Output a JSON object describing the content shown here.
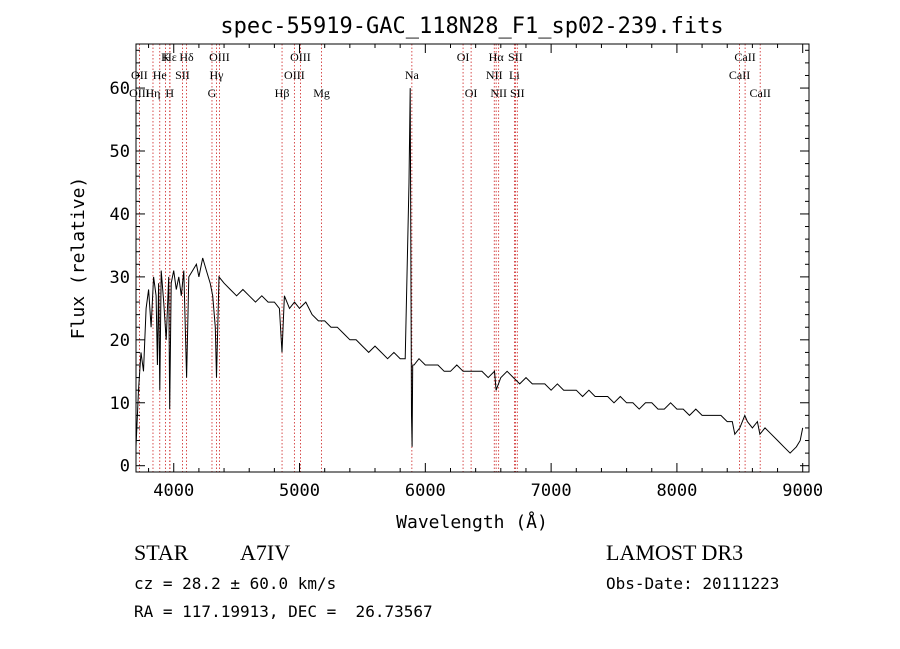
{
  "chart_data": {
    "type": "line",
    "title": "spec-55919-GAC_118N28_F1_sp02-239.fits",
    "xlabel": "Wavelength (Å)",
    "ylabel": "Flux (relative)",
    "xlim": [
      3700,
      9050
    ],
    "ylim": [
      -1,
      67
    ],
    "xticks": [
      4000,
      5000,
      6000,
      7000,
      8000,
      9000
    ],
    "yticks": [
      0,
      10,
      20,
      30,
      40,
      50,
      60
    ],
    "grid": false,
    "series": [
      {
        "name": "spectrum",
        "x": [
          3700,
          3720,
          3740,
          3760,
          3780,
          3800,
          3820,
          3840,
          3860,
          3870,
          3880,
          3889,
          3900,
          3920,
          3940,
          3960,
          3968,
          3980,
          4000,
          4020,
          4040,
          4060,
          4080,
          4102,
          4120,
          4150,
          4180,
          4200,
          4230,
          4260,
          4290,
          4310,
          4330,
          4340,
          4360,
          4400,
          4450,
          4500,
          4550,
          4600,
          4650,
          4700,
          4750,
          4800,
          4840,
          4861,
          4880,
          4920,
          4960,
          5000,
          5050,
          5100,
          5150,
          5200,
          5250,
          5300,
          5350,
          5400,
          5450,
          5500,
          5550,
          5600,
          5650,
          5700,
          5750,
          5800,
          5840,
          5870,
          5880,
          5890,
          5895,
          5900,
          5910,
          5950,
          6000,
          6050,
          6100,
          6150,
          6200,
          6250,
          6300,
          6350,
          6400,
          6450,
          6500,
          6550,
          6563,
          6600,
          6650,
          6700,
          6750,
          6800,
          6850,
          6900,
          6950,
          7000,
          7050,
          7100,
          7150,
          7200,
          7250,
          7300,
          7350,
          7400,
          7450,
          7500,
          7550,
          7600,
          7650,
          7700,
          7750,
          7800,
          7850,
          7900,
          7950,
          8000,
          8050,
          8100,
          8150,
          8200,
          8250,
          8300,
          8350,
          8400,
          8440,
          8460,
          8500,
          8540,
          8560,
          8600,
          8640,
          8660,
          8700,
          8750,
          8800,
          8850,
          8900,
          8950,
          8980,
          9000
        ],
        "y": [
          3,
          12,
          18,
          15,
          25,
          28,
          22,
          30,
          27,
          16,
          29,
          12,
          31,
          26,
          20,
          30,
          9,
          29,
          31,
          28,
          30,
          27,
          31,
          14,
          30,
          31,
          32,
          30,
          33,
          31,
          29,
          27,
          22,
          14,
          30,
          29,
          28,
          27,
          28,
          27,
          26,
          27,
          26,
          26,
          25,
          18,
          27,
          25,
          26,
          25,
          26,
          24,
          23,
          23,
          22,
          22,
          21,
          20,
          20,
          19,
          18,
          19,
          18,
          17,
          18,
          17,
          17,
          45,
          60,
          8,
          3,
          16,
          16,
          17,
          16,
          16,
          16,
          15,
          15,
          16,
          15,
          15,
          15,
          15,
          14,
          15,
          12,
          14,
          15,
          14,
          13,
          14,
          13,
          13,
          13,
          12,
          13,
          12,
          12,
          12,
          11,
          12,
          11,
          11,
          11,
          10,
          11,
          10,
          10,
          9,
          10,
          10,
          9,
          9,
          10,
          9,
          9,
          8,
          9,
          8,
          8,
          8,
          8,
          7,
          7,
          5,
          6,
          8,
          7,
          6,
          7,
          5,
          6,
          5,
          4,
          3,
          2,
          3,
          4,
          6
        ]
      }
    ],
    "annotations": [
      {
        "label": "Hδ",
        "x": 4102,
        "row": 1
      },
      {
        "label": "OII",
        "x": 3727,
        "row": 2
      },
      {
        "label": "OIII",
        "x": 3727,
        "row": 3
      },
      {
        "label": "Hε",
        "x": 3970,
        "row": 1
      },
      {
        "label": "K",
        "x": 3934,
        "row": 1
      },
      {
        "label": "He",
        "x": 3889,
        "row": 2
      },
      {
        "label": "Hη",
        "x": 3835,
        "row": 3
      },
      {
        "label": "SII",
        "x": 4069,
        "row": 2
      },
      {
        "label": "H",
        "x": 3968,
        "row": 3
      },
      {
        "label": "OIII",
        "x": 4363,
        "row": 1
      },
      {
        "label": "Hγ",
        "x": 4340,
        "row": 2
      },
      {
        "label": "G",
        "x": 4304,
        "row": 3
      },
      {
        "label": "OIII",
        "x": 5007,
        "row": 1
      },
      {
        "label": "OIII",
        "x": 4959,
        "row": 2
      },
      {
        "label": "Hβ",
        "x": 4861,
        "row": 3
      },
      {
        "label": "Mg",
        "x": 5175,
        "row": 3
      },
      {
        "label": "Na",
        "x": 5893,
        "row": 2
      },
      {
        "label": "OI",
        "x": 6300,
        "row": 1
      },
      {
        "label": "OI",
        "x": 6364,
        "row": 3
      },
      {
        "label": "Hα",
        "x": 6563,
        "row": 1
      },
      {
        "label": "NII",
        "x": 6548,
        "row": 2
      },
      {
        "label": "NII",
        "x": 6583,
        "row": 3
      },
      {
        "label": "SII",
        "x": 6716,
        "row": 1
      },
      {
        "label": "Li",
        "x": 6708,
        "row": 2
      },
      {
        "label": "SII",
        "x": 6731,
        "row": 3
      },
      {
        "label": "CaII",
        "x": 8542,
        "row": 1
      },
      {
        "label": "CaII",
        "x": 8498,
        "row": 2
      },
      {
        "label": "CaII",
        "x": 8662,
        "row": 3
      }
    ],
    "reference_lines": [
      3727,
      3835,
      3889,
      3934,
      3968,
      3970,
      4069,
      4102,
      4304,
      4340,
      4363,
      4861,
      4959,
      5007,
      5175,
      5893,
      6300,
      6364,
      6548,
      6563,
      6583,
      6708,
      6716,
      6731,
      8498,
      8542,
      8662
    ],
    "colors": {
      "line": "#000000",
      "reference": "#cc2222",
      "axes": "#000000"
    }
  },
  "info": {
    "object_class": "STAR",
    "subclass": "A7IV",
    "survey": "LAMOST DR3",
    "redshift": "cz = 28.2 ± 60.0 km/s",
    "obs_date": "Obs-Date: 20111223",
    "coords": "RA = 117.19913, DEC =  26.73567"
  }
}
